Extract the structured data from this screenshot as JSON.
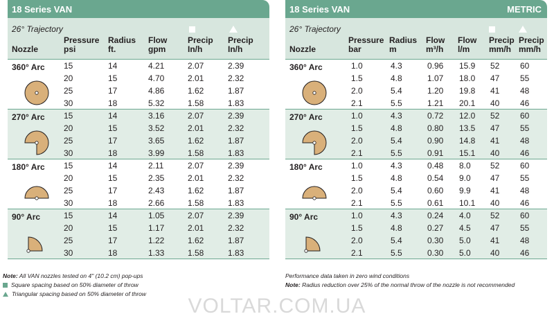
{
  "left": {
    "title": "18 Series VAN",
    "trajectory": "26° Trajectory",
    "headers": [
      "Nozzle",
      "Pressure\npsi",
      "Radius\nft.",
      "Flow\ngpm",
      "Precip\nIn/h",
      "Precip\nIn/h"
    ],
    "groups": [
      {
        "arc": "360° Arc",
        "icon": "360",
        "rows": [
          [
            "15",
            "14",
            "4.21",
            "2.07",
            "2.39"
          ],
          [
            "20",
            "15",
            "4.70",
            "2.01",
            "2.32"
          ],
          [
            "25",
            "17",
            "4.86",
            "1.62",
            "1.87"
          ],
          [
            "30",
            "18",
            "5.32",
            "1.58",
            "1.83"
          ]
        ]
      },
      {
        "arc": "270° Arc",
        "icon": "270",
        "rows": [
          [
            "15",
            "14",
            "3.16",
            "2.07",
            "2.39"
          ],
          [
            "20",
            "15",
            "3.52",
            "2.01",
            "2.32"
          ],
          [
            "25",
            "17",
            "3.65",
            "1.62",
            "1.87"
          ],
          [
            "30",
            "18",
            "3.99",
            "1.58",
            "1.83"
          ]
        ]
      },
      {
        "arc": "180° Arc",
        "icon": "180",
        "rows": [
          [
            "15",
            "14",
            "2.11",
            "2.07",
            "2.39"
          ],
          [
            "20",
            "15",
            "2.35",
            "2.01",
            "2.32"
          ],
          [
            "25",
            "17",
            "2.43",
            "1.62",
            "1.87"
          ],
          [
            "30",
            "18",
            "2.66",
            "1.58",
            "1.83"
          ]
        ]
      },
      {
        "arc": "90° Arc",
        "icon": "90",
        "rows": [
          [
            "15",
            "14",
            "1.05",
            "2.07",
            "2.39"
          ],
          [
            "20",
            "15",
            "1.17",
            "2.01",
            "2.32"
          ],
          [
            "25",
            "17",
            "1.22",
            "1.62",
            "1.87"
          ],
          [
            "30",
            "18",
            "1.33",
            "1.58",
            "1.83"
          ]
        ]
      }
    ]
  },
  "right": {
    "title": "18 Series VAN",
    "badge": "METRIC",
    "trajectory": "26° Trajectory",
    "headers": [
      "Nozzle",
      "Pressure\nbar",
      "Radius\nm",
      "Flow\nm³/h",
      "Flow\nl/m",
      "Precip\nmm/h",
      "Precip\nmm/h"
    ],
    "groups": [
      {
        "arc": "360° Arc",
        "icon": "360",
        "rows": [
          [
            "1.0",
            "4.3",
            "0.96",
            "15.9",
            "52",
            "60"
          ],
          [
            "1.5",
            "4.8",
            "1.07",
            "18.0",
            "47",
            "55"
          ],
          [
            "2.0",
            "5.4",
            "1.20",
            "19.8",
            "41",
            "48"
          ],
          [
            "2.1",
            "5.5",
            "1.21",
            "20.1",
            "40",
            "46"
          ]
        ]
      },
      {
        "arc": "270° Arc",
        "icon": "270",
        "rows": [
          [
            "1.0",
            "4.3",
            "0.72",
            "12.0",
            "52",
            "60"
          ],
          [
            "1.5",
            "4.8",
            "0.80",
            "13.5",
            "47",
            "55"
          ],
          [
            "2.0",
            "5.4",
            "0.90",
            "14.8",
            "41",
            "48"
          ],
          [
            "2.1",
            "5.5",
            "0.91",
            "15.1",
            "40",
            "46"
          ]
        ]
      },
      {
        "arc": "180° Arc",
        "icon": "180",
        "rows": [
          [
            "1.0",
            "4.3",
            "0.48",
            "8.0",
            "52",
            "60"
          ],
          [
            "1.5",
            "4.8",
            "0.54",
            "9.0",
            "47",
            "55"
          ],
          [
            "2.0",
            "5.4",
            "0.60",
            "9.9",
            "41",
            "48"
          ],
          [
            "2.1",
            "5.5",
            "0.61",
            "10.1",
            "40",
            "46"
          ]
        ]
      },
      {
        "arc": "90° Arc",
        "icon": "90",
        "rows": [
          [
            "1.0",
            "4.3",
            "0.24",
            "4.0",
            "52",
            "60"
          ],
          [
            "1.5",
            "4.8",
            "0.27",
            "4.5",
            "47",
            "55"
          ],
          [
            "2.0",
            "5.4",
            "0.30",
            "5.0",
            "41",
            "48"
          ],
          [
            "2.1",
            "5.5",
            "0.30",
            "5.0",
            "40",
            "46"
          ]
        ]
      }
    ]
  },
  "notes_left": {
    "note_label": "Note:",
    "note_text": " All VAN nozzles tested on 4\" (10.2 cm) pop-ups",
    "square": "Square spacing based on 50% diameter of throw",
    "triangle": "Triangular spacing based on 50% diameter of throw"
  },
  "notes_right": {
    "line1": "Performance data taken in zero wind conditions",
    "note_label": "Note:",
    "note_text": " Radius reduction over 25% of the normal throw of the nozzle is not recommended"
  },
  "watermark": "VOLTAR.COM.UA",
  "colors": {
    "accent": "#6aa78f",
    "shade": "#e1ede6",
    "nozzle_fill": "#d9b07a"
  }
}
